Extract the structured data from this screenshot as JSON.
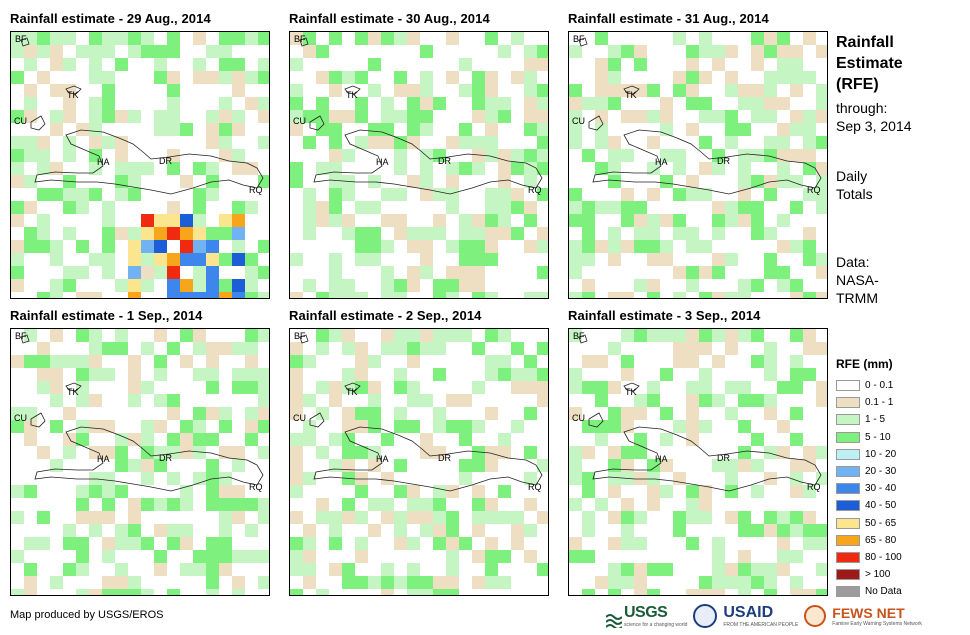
{
  "panels": [
    {
      "title": "Rainfall estimate - 29 Aug., 2014",
      "day": "29aug"
    },
    {
      "title": "Rainfall estimate - 30 Aug., 2014",
      "day": "30aug"
    },
    {
      "title": "Rainfall estimate - 31 Aug., 2014",
      "day": "31aug"
    },
    {
      "title": "Rainfall estimate - 1 Sep., 2014",
      "day": "1sep"
    },
    {
      "title": "Rainfall estimate - 2 Sep., 2014",
      "day": "2sep"
    },
    {
      "title": "Rainfall estimate - 3 Sep., 2014",
      "day": "3sep"
    }
  ],
  "map_labels": {
    "bf": "BF",
    "cu": "CU",
    "tk": "TK",
    "ha": "HA",
    "dr": "DR",
    "rq": "RQ"
  },
  "side": {
    "title": "Rainfall\nEstimate\n(RFE)",
    "through_label": "through:",
    "through_date": "Sep 3, 2014",
    "totals_line1": "Daily",
    "totals_line2": "Totals",
    "data_line1": "Data:",
    "data_line2": "NASA-",
    "data_line3": "TRMM"
  },
  "legend": {
    "title": "RFE (mm)",
    "classes": [
      {
        "label": "0 - 0.1",
        "color": "#ffffff"
      },
      {
        "label": "0.1 - 1",
        "color": "#eedfc2"
      },
      {
        "label": "1 - 5",
        "color": "#c5f5c2"
      },
      {
        "label": "5 - 10",
        "color": "#7ef07e"
      },
      {
        "label": "10 - 20",
        "color": "#bdf0f5"
      },
      {
        "label": "20 - 30",
        "color": "#70b2f2"
      },
      {
        "label": "30 - 40",
        "color": "#3d86ec"
      },
      {
        "label": "40 - 50",
        "color": "#1b5ed8"
      },
      {
        "label": "50 - 65",
        "color": "#fbe58f"
      },
      {
        "label": "65 - 80",
        "color": "#f7a51a"
      },
      {
        "label": "80 - 100",
        "color": "#f02a10"
      },
      {
        "label": "> 100",
        "color": "#9e1a1a"
      },
      {
        "label": "No Data",
        "color": "#9c9c9c"
      }
    ]
  },
  "footer": {
    "credit": "Map produced by USGS/EROS"
  },
  "logos": {
    "usgs": "USGS",
    "usgs_tagline": "science for a changing world",
    "usaid": "USAID",
    "usaid_tagline": "FROM THE AMERICAN PEOPLE",
    "fews": "FEWS NET",
    "fews_tagline": "Famine Early Warning Systems Network"
  }
}
